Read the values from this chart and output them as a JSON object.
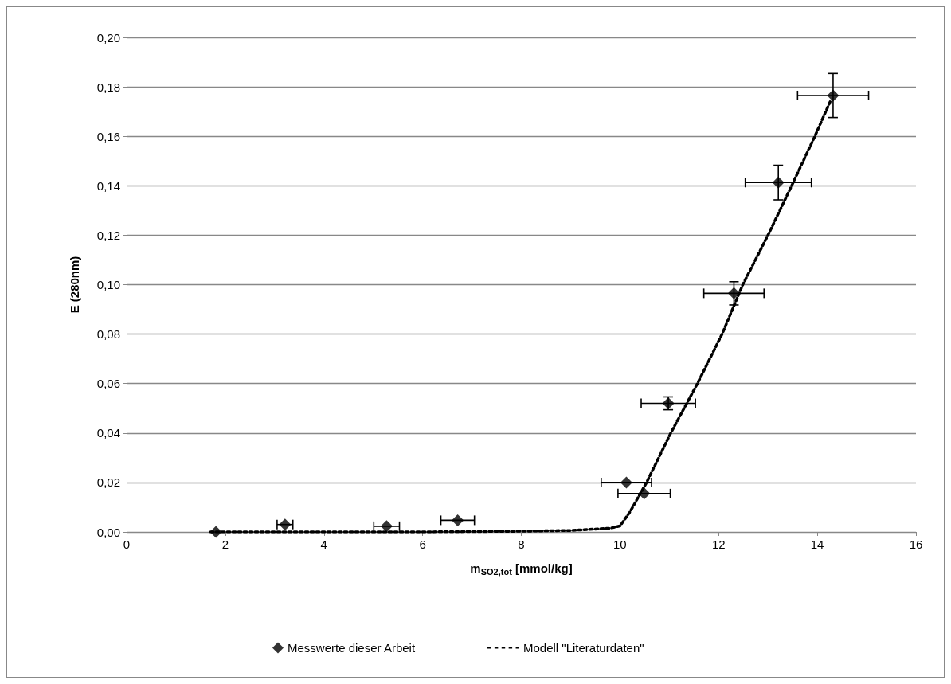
{
  "chart_data": {
    "type": "scatter",
    "xlabel": "m$_{SO2,tot}$ [mmol/kg]",
    "ylabel": "E (280nm)",
    "xlim": [
      0,
      16
    ],
    "xticks": [
      0,
      2,
      4,
      6,
      8,
      10,
      12,
      14,
      16
    ],
    "ylim": [
      0,
      0.2
    ],
    "yticks": [
      {
        "value": 0,
        "label": "0,00"
      },
      {
        "value": 0.02,
        "label": "0,02"
      },
      {
        "value": 0.04,
        "label": "0,04"
      },
      {
        "value": 0.06,
        "label": "0,06"
      },
      {
        "value": 0.08,
        "label": "0,08"
      },
      {
        "value": 0.1,
        "label": "0,10"
      },
      {
        "value": 0.12,
        "label": "0,12"
      },
      {
        "value": 0.14,
        "label": "0,14"
      },
      {
        "value": 0.16,
        "label": "0,16"
      },
      {
        "value": 0.18,
        "label": "0,18"
      },
      {
        "value": 0.2,
        "label": "0,20"
      }
    ],
    "grid": "y",
    "legend": "bottom",
    "series": [
      {
        "name": "Messwerte dieser Arbeit",
        "color": "#000000",
        "marker": "diamond",
        "x": [
          1.81,
          3.21,
          5.27,
          6.71,
          10.13,
          10.49,
          10.98,
          12.31,
          13.21,
          14.32
        ],
        "values": [
          0,
          0.003,
          0.0023,
          0.0047,
          0.02,
          0.0155,
          0.052,
          0.0965,
          0.1413,
          0.1765
        ],
        "errors": [
          null,
          null,
          null,
          null,
          null,
          null,
          0.0026,
          0.0047,
          0.007,
          0.0089
        ],
        "xerrors": [
          null,
          0.16,
          0.26,
          0.34,
          0.51,
          0.53,
          0.55,
          0.61,
          0.67,
          0.72
        ]
      },
      {
        "name": "Modell \"Literaturdaten\"",
        "type": "line",
        "color": "#000000",
        "marker": "none",
        "line_style": "dotted",
        "x": [
          1.7,
          4,
          6,
          8,
          9,
          9.8,
          10,
          10.2,
          10.54,
          11.03,
          11.57,
          12.07,
          12.49,
          13.0,
          13.48,
          13.95,
          14.26
        ],
        "values": [
          0,
          0,
          0,
          0.0003,
          0.0006,
          0.0015,
          0.0024,
          0.008,
          0.02,
          0.04,
          0.06,
          0.08,
          0.1,
          0.12,
          0.14,
          0.16,
          0.174
        ]
      }
    ]
  }
}
